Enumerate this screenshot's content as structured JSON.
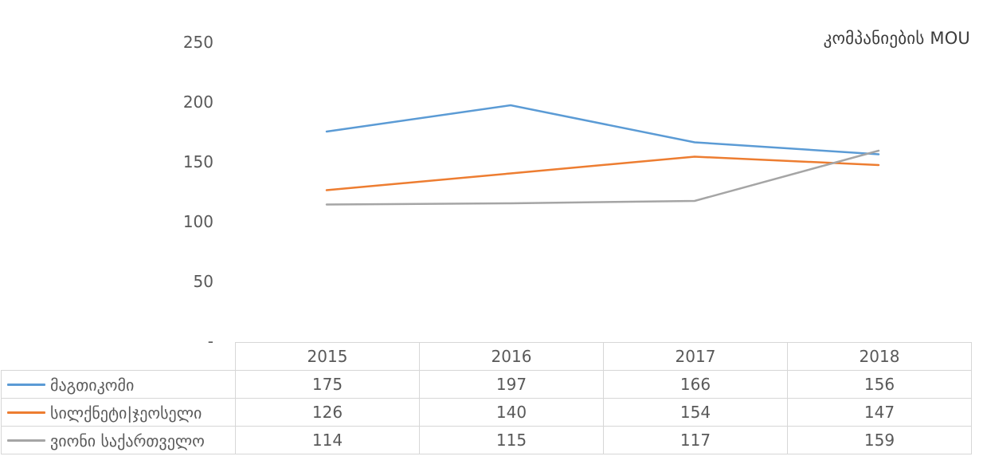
{
  "chart_data": {
    "type": "line",
    "title": "კომპანიების MOU",
    "categories": [
      "2015",
      "2016",
      "2017",
      "2018"
    ],
    "series": [
      {
        "name": "მაგთიკომი",
        "color": "#5B9BD5",
        "values": [
          175,
          197,
          166,
          156
        ]
      },
      {
        "name": "სილქნეტი|ჯეოსელი",
        "color": "#ED7D31",
        "values": [
          126,
          140,
          154,
          147
        ]
      },
      {
        "name": "ვიონი საქართველო",
        "color": "#A5A5A5",
        "values": [
          114,
          115,
          117,
          159
        ]
      }
    ],
    "y_axis": {
      "min": 0,
      "max": 250,
      "ticks": [
        {
          "label": "250",
          "value": 250
        },
        {
          "label": "200",
          "value": 200
        },
        {
          "label": "150",
          "value": 150
        },
        {
          "label": "100",
          "value": 100
        },
        {
          "label": "50",
          "value": 50
        },
        {
          "label": "-",
          "value": 0
        }
      ]
    },
    "grid": false,
    "legend_position": "table-left",
    "data_table_shown": true
  },
  "colors": {
    "background": "#FFFFFF",
    "title_text": "#3B3B3B",
    "axis_text": "#595959",
    "table_text": "#595959",
    "table_border": "#D7D7D7"
  }
}
